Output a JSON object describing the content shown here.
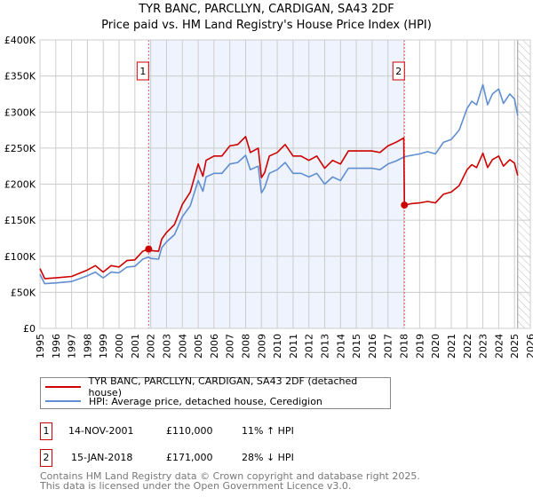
{
  "title": "TYR BANC, PARCLLYN, CARDIGAN, SA43 2DF",
  "subtitle": "Price paid vs. HM Land Registry's House Price Index (HPI)",
  "colors": {
    "price": "#cc0000",
    "hpi": "#5f8fd0",
    "shade": "#eef3fd",
    "grid": "#cccccc"
  },
  "chart_data": {
    "type": "line",
    "title": "TYR BANC, PARCLLYN, CARDIGAN, SA43 2DF",
    "xlabel": "",
    "ylabel": "",
    "xlim": [
      1995,
      2026
    ],
    "ylim": [
      0,
      400000
    ],
    "grid": true,
    "legend_placement": "below",
    "x_ticks": [
      "1995",
      "1996",
      "1997",
      "1998",
      "1999",
      "2000",
      "2001",
      "2002",
      "2003",
      "2004",
      "2005",
      "2006",
      "2007",
      "2008",
      "2009",
      "2010",
      "2011",
      "2012",
      "2013",
      "2014",
      "2015",
      "2016",
      "2017",
      "2018",
      "2019",
      "2020",
      "2021",
      "2022",
      "2023",
      "2024",
      "2025",
      "2026"
    ],
    "y_ticks": [
      {
        "v": 0,
        "label": "£0"
      },
      {
        "v": 50000,
        "label": "£50K"
      },
      {
        "v": 100000,
        "label": "£100K"
      },
      {
        "v": 150000,
        "label": "£150K"
      },
      {
        "v": 200000,
        "label": "£200K"
      },
      {
        "v": 250000,
        "label": "£250K"
      },
      {
        "v": 300000,
        "label": "£300K"
      },
      {
        "v": 350000,
        "label": "£350K"
      },
      {
        "v": 400000,
        "label": "£400K"
      }
    ],
    "shaded_range": [
      2001.87,
      2018.04
    ],
    "forecast_hatch_from": 2025.2,
    "series": [
      {
        "name": "TYR BANC, PARCLLYN, CARDIGAN, SA43 2DF (detached house)",
        "color": "#cc0000",
        "points": [
          [
            1995,
            83
          ],
          [
            1995.3,
            69
          ],
          [
            1996,
            70
          ],
          [
            1997,
            72
          ],
          [
            1998,
            81
          ],
          [
            1998.5,
            87
          ],
          [
            1999,
            78
          ],
          [
            1999.5,
            87
          ],
          [
            2000,
            85
          ],
          [
            2000.5,
            94
          ],
          [
            2001,
            95
          ],
          [
            2001.5,
            107
          ],
          [
            2001.87,
            110
          ],
          [
            2002,
            108
          ],
          [
            2002.5,
            107
          ],
          [
            2002.7,
            124
          ],
          [
            2003,
            133
          ],
          [
            2003.5,
            144
          ],
          [
            2004,
            172
          ],
          [
            2004.5,
            189
          ],
          [
            2005,
            228
          ],
          [
            2005.3,
            211
          ],
          [
            2005.5,
            233
          ],
          [
            2006,
            239
          ],
          [
            2006.5,
            239
          ],
          [
            2007,
            253
          ],
          [
            2007.5,
            255
          ],
          [
            2008,
            266
          ],
          [
            2008.3,
            244
          ],
          [
            2008.8,
            250
          ],
          [
            2009,
            209
          ],
          [
            2009.2,
            216
          ],
          [
            2009.5,
            239
          ],
          [
            2010,
            244
          ],
          [
            2010.5,
            255
          ],
          [
            2011,
            239
          ],
          [
            2011.5,
            239
          ],
          [
            2012,
            233
          ],
          [
            2012.5,
            239
          ],
          [
            2013,
            222
          ],
          [
            2013.5,
            233
          ],
          [
            2014,
            228
          ],
          [
            2014.5,
            246
          ],
          [
            2015,
            246
          ],
          [
            2016,
            246
          ],
          [
            2016.5,
            244
          ],
          [
            2017,
            253
          ],
          [
            2017.5,
            258
          ],
          [
            2018,
            264
          ],
          [
            2018.04,
            171
          ],
          [
            2018.5,
            173
          ],
          [
            2019,
            174
          ],
          [
            2019.5,
            176
          ],
          [
            2020,
            174
          ],
          [
            2020.5,
            186
          ],
          [
            2021,
            189
          ],
          [
            2021.5,
            198
          ],
          [
            2022,
            220
          ],
          [
            2022.3,
            227
          ],
          [
            2022.6,
            223
          ],
          [
            2023,
            243
          ],
          [
            2023.3,
            223
          ],
          [
            2023.6,
            234
          ],
          [
            2024,
            239
          ],
          [
            2024.3,
            225
          ],
          [
            2024.7,
            234
          ],
          [
            2025,
            229
          ],
          [
            2025.2,
            212
          ]
        ]
      },
      {
        "name": "HPI: Average price, detached house, Ceredigion",
        "color": "#5f8fd0",
        "points": [
          [
            1995,
            75
          ],
          [
            1995.3,
            62
          ],
          [
            1996,
            63
          ],
          [
            1997,
            65
          ],
          [
            1998,
            73
          ],
          [
            1998.5,
            78
          ],
          [
            1999,
            70
          ],
          [
            1999.5,
            78
          ],
          [
            2000,
            77
          ],
          [
            2000.5,
            85
          ],
          [
            2001,
            86
          ],
          [
            2001.5,
            96
          ],
          [
            2001.87,
            99
          ],
          [
            2002,
            97
          ],
          [
            2002.5,
            96
          ],
          [
            2002.7,
            112
          ],
          [
            2003,
            120
          ],
          [
            2003.5,
            130
          ],
          [
            2004,
            155
          ],
          [
            2004.5,
            170
          ],
          [
            2005,
            205
          ],
          [
            2005.3,
            190
          ],
          [
            2005.5,
            210
          ],
          [
            2006,
            215
          ],
          [
            2006.5,
            215
          ],
          [
            2007,
            228
          ],
          [
            2007.5,
            230
          ],
          [
            2008,
            240
          ],
          [
            2008.3,
            220
          ],
          [
            2008.8,
            225
          ],
          [
            2009,
            188
          ],
          [
            2009.2,
            195
          ],
          [
            2009.5,
            215
          ],
          [
            2010,
            220
          ],
          [
            2010.5,
            230
          ],
          [
            2011,
            215
          ],
          [
            2011.5,
            215
          ],
          [
            2012,
            210
          ],
          [
            2012.5,
            215
          ],
          [
            2013,
            200
          ],
          [
            2013.5,
            210
          ],
          [
            2014,
            205
          ],
          [
            2014.5,
            222
          ],
          [
            2015,
            222
          ],
          [
            2016,
            222
          ],
          [
            2016.5,
            220
          ],
          [
            2017,
            228
          ],
          [
            2017.5,
            232
          ],
          [
            2018.04,
            238
          ],
          [
            2018.5,
            240
          ],
          [
            2019,
            242
          ],
          [
            2019.5,
            245
          ],
          [
            2020,
            242
          ],
          [
            2020.5,
            258
          ],
          [
            2021,
            262
          ],
          [
            2021.5,
            275
          ],
          [
            2022,
            305
          ],
          [
            2022.3,
            315
          ],
          [
            2022.6,
            310
          ],
          [
            2023,
            338
          ],
          [
            2023.3,
            310
          ],
          [
            2023.6,
            325
          ],
          [
            2024,
            332
          ],
          [
            2024.3,
            312
          ],
          [
            2024.7,
            325
          ],
          [
            2025,
            318
          ],
          [
            2025.2,
            295
          ]
        ]
      }
    ],
    "point_units": "thousands GBP",
    "annotations": [
      {
        "label": "1",
        "x": 2001.87,
        "y": 110
      },
      {
        "label": "2",
        "x": 2018.04,
        "y": 171
      }
    ]
  },
  "legend": {
    "price_label": "TYR BANC, PARCLLYN, CARDIGAN, SA43 2DF (detached house)",
    "hpi_label": "HPI: Average price, detached house, Ceredigion"
  },
  "sales": [
    {
      "num": "1",
      "date": "14-NOV-2001",
      "price": "£110,000",
      "hpi": "11% ↑ HPI"
    },
    {
      "num": "2",
      "date": "15-JAN-2018",
      "price": "£171,000",
      "hpi": "28% ↓ HPI"
    }
  ],
  "footer": {
    "line1": "Contains HM Land Registry data © Crown copyright and database right 2025.",
    "line2": "This data is licensed under the Open Government Licence v3.0."
  }
}
